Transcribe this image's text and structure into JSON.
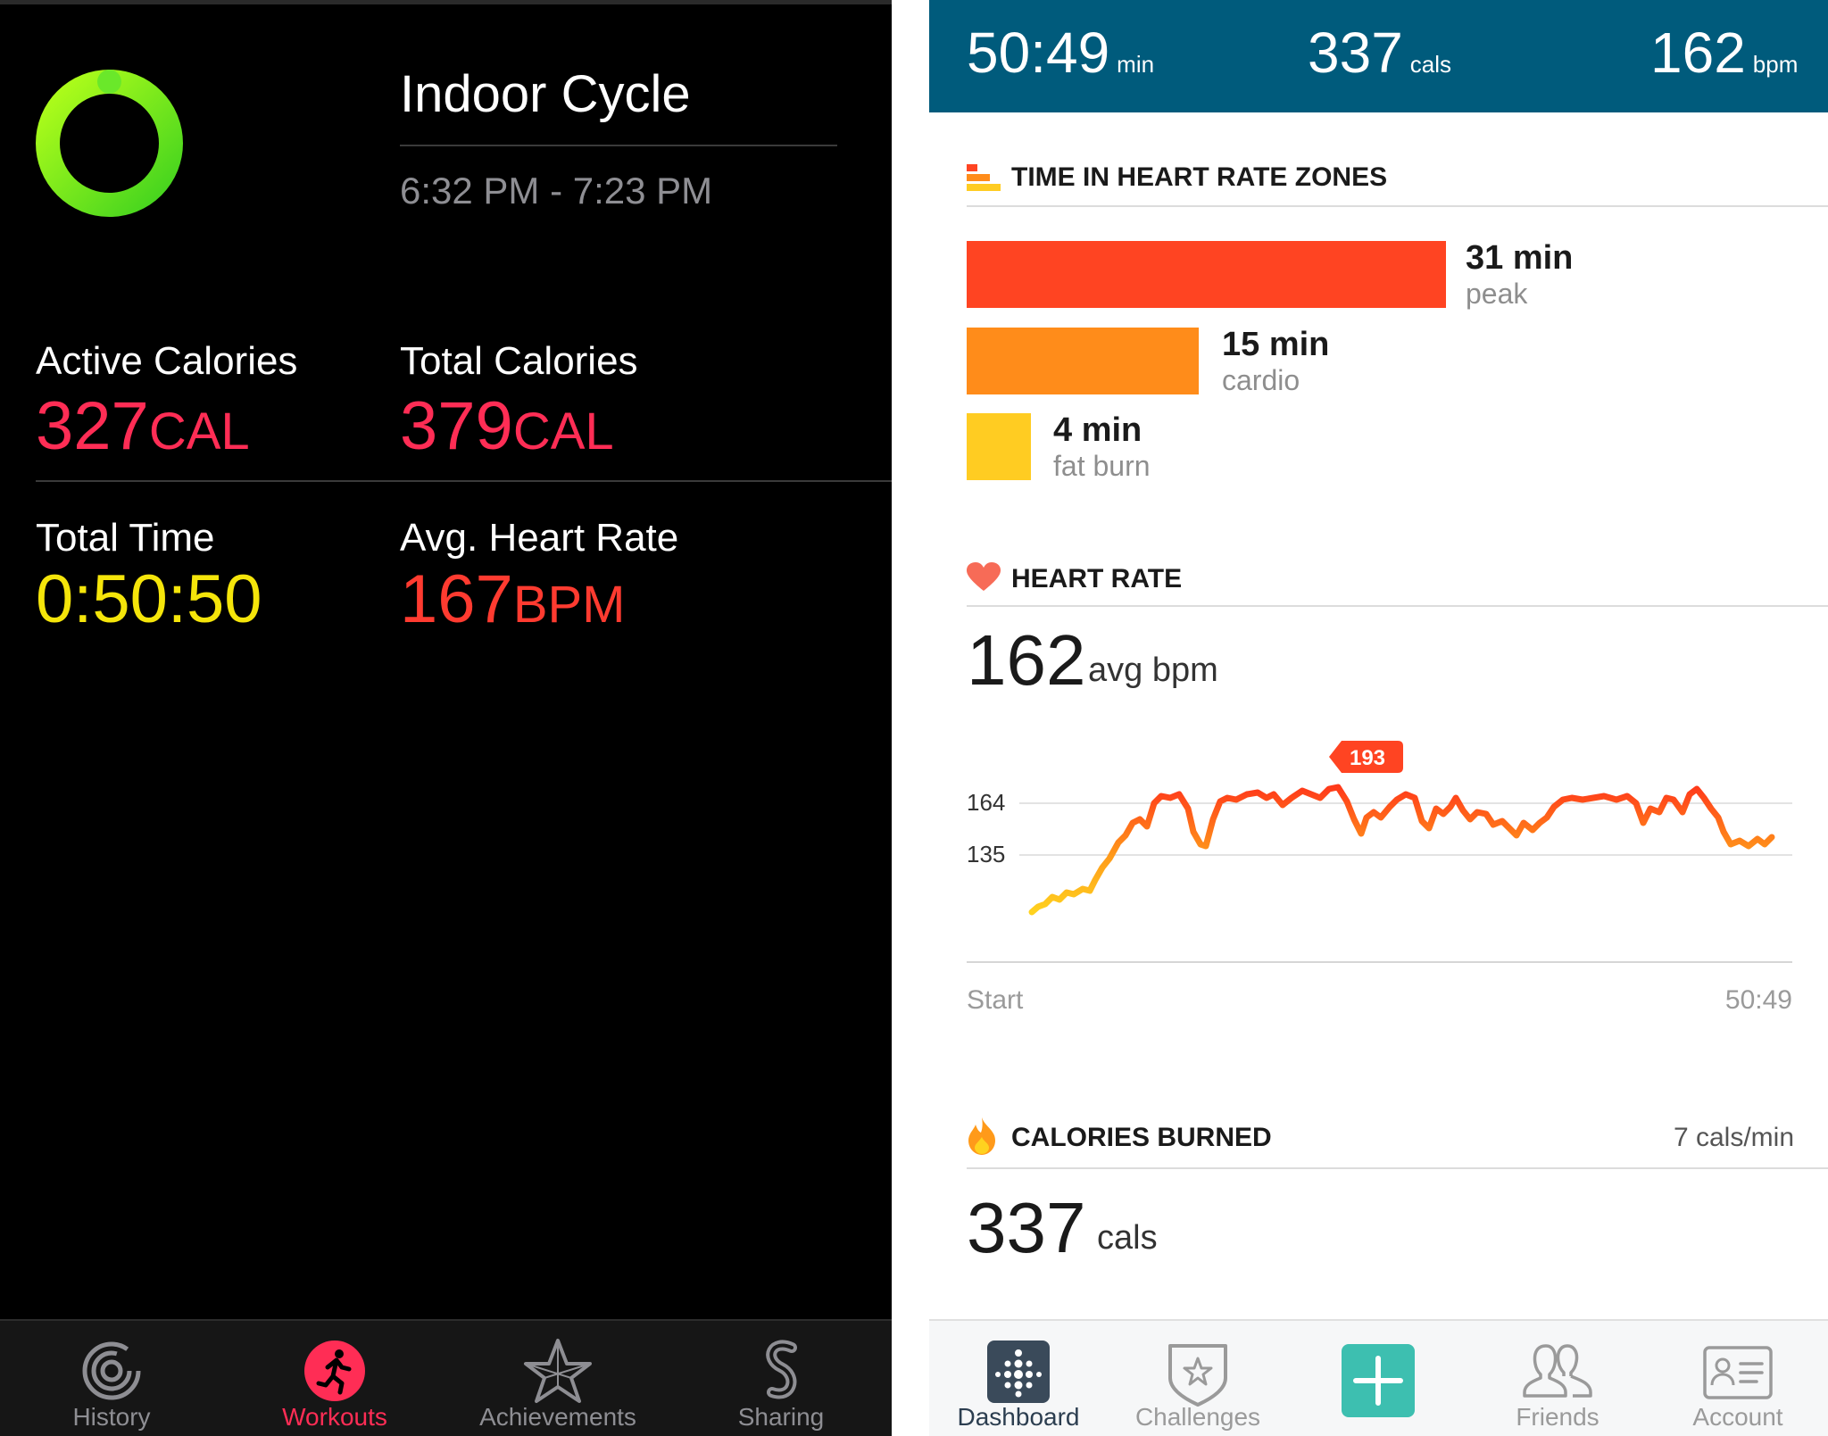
{
  "left": {
    "workout_title": "Indoor Cycle",
    "time_range": "6:32 PM - 7:23 PM",
    "active_calories": {
      "label": "Active Calories",
      "value": "327",
      "unit": "CAL",
      "color": "#ff2d55"
    },
    "total_calories": {
      "label": "Total Calories",
      "value": "379",
      "unit": "CAL",
      "color": "#ff2d55"
    },
    "total_time": {
      "label": "Total Time",
      "value": "0:50:50",
      "color": "#f5e50a"
    },
    "avg_heart_rate": {
      "label": "Avg. Heart Rate",
      "value": "167",
      "unit": "BPM",
      "color": "#ff3b30"
    },
    "tabs": [
      {
        "label": "History",
        "icon": "history-icon"
      },
      {
        "label": "Workouts",
        "icon": "workouts-icon",
        "active": true
      },
      {
        "label": "Achievements",
        "icon": "achievements-icon"
      },
      {
        "label": "Sharing",
        "icon": "sharing-icon"
      }
    ],
    "accent": "#ff2d55"
  },
  "right": {
    "header": {
      "duration": {
        "value": "50:49",
        "unit": "min"
      },
      "calories": {
        "value": "337",
        "unit": "cals"
      },
      "heart_rate": {
        "value": "162",
        "unit": "bpm"
      },
      "color": "#005b7c"
    },
    "zones": {
      "title": "TIME IN HEART RATE ZONES",
      "items": [
        {
          "value": "31 min",
          "label": "peak",
          "minutes": 31,
          "color": "#ff4422"
        },
        {
          "value": "15 min",
          "label": "cardio",
          "minutes": 15,
          "color": "#ff8c1a"
        },
        {
          "value": "4 min",
          "label": "fat burn",
          "minutes": 4,
          "color": "#ffcc22"
        }
      ]
    },
    "heart_rate": {
      "title": "HEART RATE",
      "avg_value": "162",
      "avg_unit": "avg bpm",
      "peak_label": "193",
      "y_ticks": [
        "164",
        "135"
      ],
      "x_start": "Start",
      "x_end": "50:49"
    },
    "calories": {
      "title": "CALORIES BURNED",
      "rate": "7 cals/min",
      "value": "337",
      "unit": "cals"
    },
    "tabs": [
      {
        "label": "Dashboard",
        "icon": "dashboard-icon",
        "active": true
      },
      {
        "label": "Challenges",
        "icon": "challenges-icon"
      },
      {
        "label": "",
        "icon": "add-icon"
      },
      {
        "label": "Friends",
        "icon": "friends-icon"
      },
      {
        "label": "Account",
        "icon": "account-icon"
      }
    ]
  }
}
